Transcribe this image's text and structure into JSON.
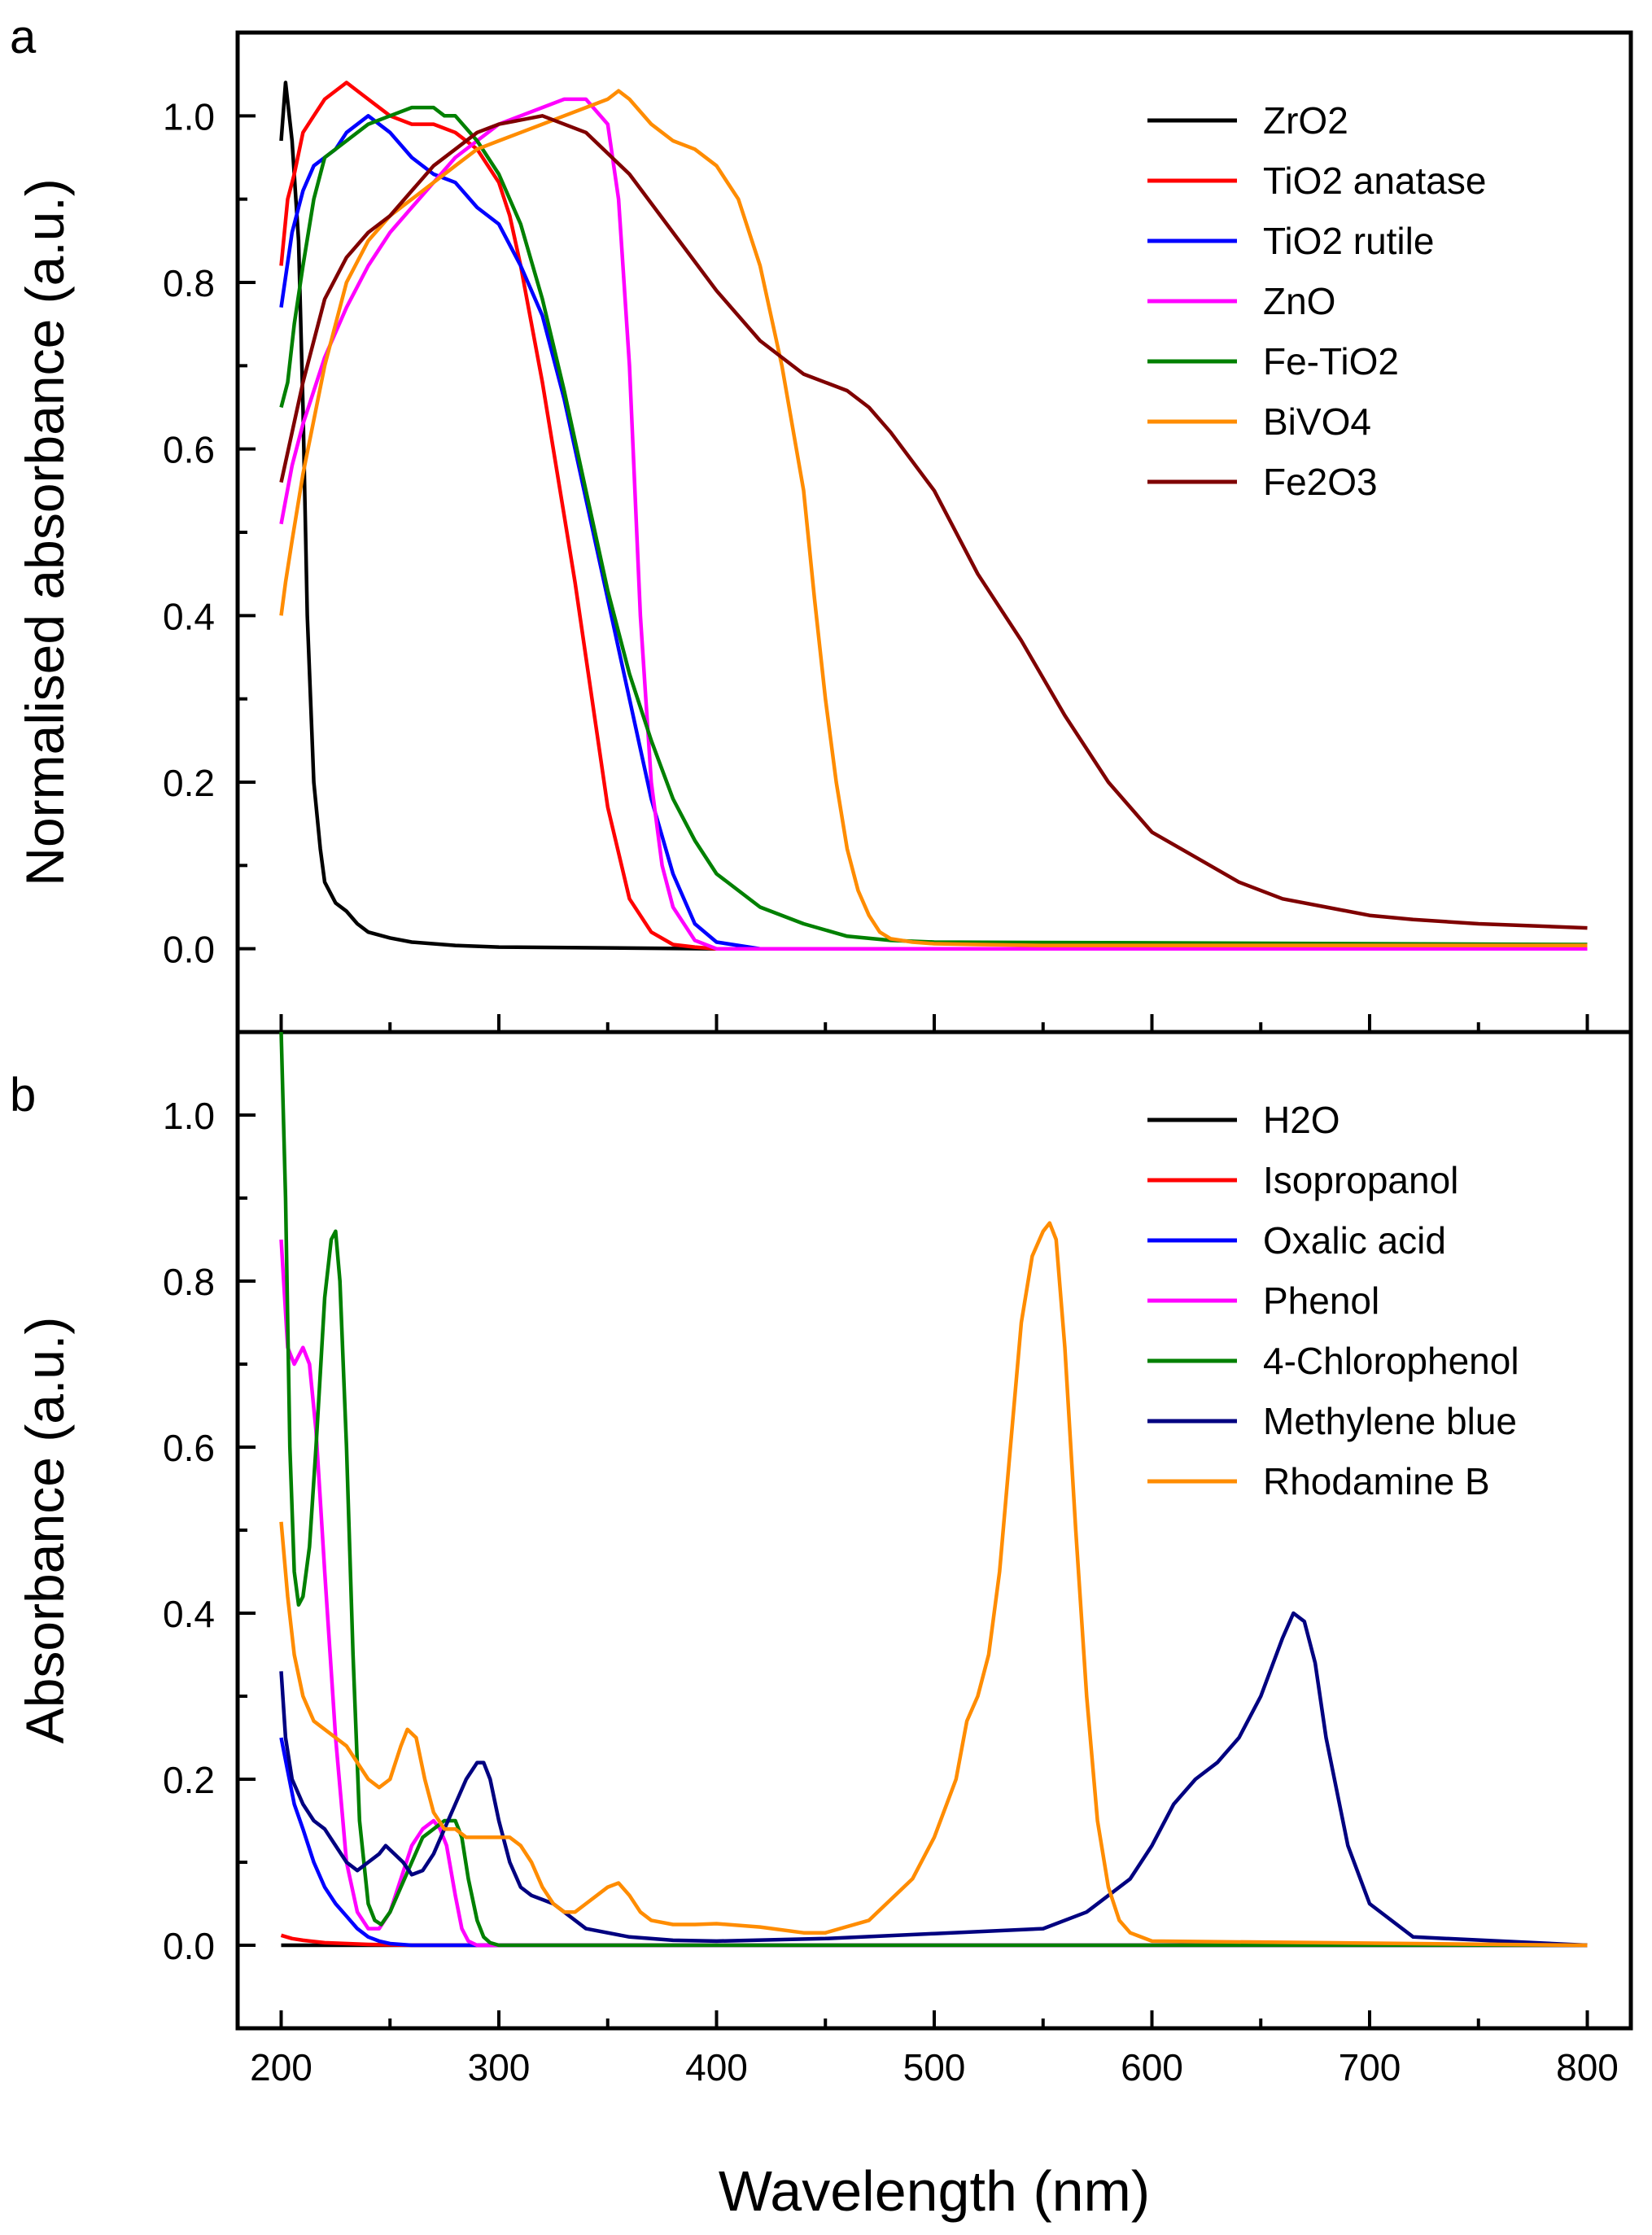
{
  "xlabel": "Wavelength (nm)",
  "chart_data": [
    {
      "type": "line",
      "panel": "a",
      "ylabel": "Normalised absorbance (a.u.)",
      "xlim": [
        180,
        820
      ],
      "ylim": [
        -0.1,
        1.1
      ],
      "xticks": [
        "200",
        "300",
        "400",
        "500",
        "600",
        "700",
        "800"
      ],
      "xtick_values": [
        200,
        300,
        400,
        500,
        600,
        700,
        800
      ],
      "yticks": [
        "0.0",
        "0.2",
        "0.4",
        "0.6",
        "0.8",
        "1.0"
      ],
      "ytick_values": [
        0.0,
        0.2,
        0.4,
        0.6,
        0.8,
        1.0
      ],
      "legend": "top-right",
      "series": [
        {
          "name": "ZrO2",
          "color": "#000000",
          "x": [
            200,
            202,
            205,
            208,
            210,
            212,
            215,
            218,
            220,
            225,
            230,
            235,
            240,
            250,
            260,
            280,
            300,
            350,
            400,
            500,
            800
          ],
          "y": [
            0.97,
            1.04,
            0.97,
            0.85,
            0.65,
            0.4,
            0.2,
            0.12,
            0.08,
            0.055,
            0.045,
            0.03,
            0.02,
            0.013,
            0.008,
            0.004,
            0.002,
            0.001,
            0.0,
            0.0,
            0.0
          ]
        },
        {
          "name": "TiO2 anatase",
          "color": "#ff0000",
          "x": [
            200,
            203,
            206,
            210,
            215,
            220,
            225,
            230,
            235,
            240,
            250,
            260,
            270,
            280,
            290,
            300,
            305,
            310,
            320,
            330,
            335,
            340,
            345,
            350,
            360,
            370,
            380,
            390,
            400,
            410,
            800
          ],
          "y": [
            0.82,
            0.9,
            0.93,
            0.98,
            1.0,
            1.02,
            1.03,
            1.04,
            1.03,
            1.02,
            1.0,
            0.99,
            0.99,
            0.98,
            0.96,
            0.92,
            0.88,
            0.82,
            0.68,
            0.52,
            0.44,
            0.35,
            0.26,
            0.17,
            0.06,
            0.02,
            0.005,
            0.002,
            0.0,
            0.0,
            0.0
          ]
        },
        {
          "name": "TiO2 rutile",
          "color": "#0000ff",
          "x": [
            200,
            205,
            210,
            215,
            220,
            225,
            230,
            240,
            250,
            260,
            270,
            280,
            290,
            300,
            310,
            320,
            330,
            340,
            350,
            360,
            370,
            380,
            390,
            400,
            420,
            800
          ],
          "y": [
            0.77,
            0.86,
            0.91,
            0.94,
            0.95,
            0.96,
            0.98,
            1.0,
            0.98,
            0.95,
            0.93,
            0.92,
            0.89,
            0.87,
            0.82,
            0.76,
            0.66,
            0.54,
            0.42,
            0.3,
            0.18,
            0.09,
            0.03,
            0.008,
            0.0,
            0.0
          ]
        },
        {
          "name": "ZnO",
          "color": "#ff00ff",
          "x": [
            200,
            205,
            210,
            220,
            230,
            240,
            250,
            260,
            270,
            280,
            290,
            300,
            310,
            320,
            330,
            340,
            350,
            355,
            360,
            365,
            370,
            375,
            380,
            390,
            400,
            800
          ],
          "y": [
            0.51,
            0.58,
            0.63,
            0.71,
            0.77,
            0.82,
            0.86,
            0.89,
            0.92,
            0.95,
            0.97,
            0.99,
            1.0,
            1.01,
            1.02,
            1.02,
            0.99,
            0.9,
            0.7,
            0.4,
            0.2,
            0.1,
            0.05,
            0.01,
            0.0,
            0.0
          ]
        },
        {
          "name": "Fe-TiO2",
          "color": "#008000",
          "x": [
            200,
            203,
            206,
            210,
            215,
            220,
            230,
            240,
            250,
            260,
            270,
            275,
            280,
            290,
            300,
            310,
            320,
            330,
            340,
            350,
            360,
            370,
            380,
            390,
            400,
            420,
            440,
            460,
            480,
            500,
            800
          ],
          "y": [
            0.65,
            0.68,
            0.75,
            0.82,
            0.9,
            0.95,
            0.97,
            0.99,
            1.0,
            1.01,
            1.01,
            1.0,
            1.0,
            0.97,
            0.93,
            0.87,
            0.78,
            0.67,
            0.55,
            0.43,
            0.33,
            0.25,
            0.18,
            0.13,
            0.09,
            0.05,
            0.03,
            0.015,
            0.01,
            0.008,
            0.005
          ]
        },
        {
          "name": "BiVO4",
          "color": "#ff8c00",
          "x": [
            200,
            202,
            205,
            210,
            220,
            230,
            240,
            250,
            260,
            270,
            280,
            290,
            300,
            310,
            320,
            330,
            340,
            350,
            355,
            360,
            370,
            380,
            390,
            400,
            410,
            420,
            430,
            440,
            445,
            450,
            455,
            460,
            465,
            470,
            475,
            480,
            490,
            500,
            520,
            550,
            800
          ],
          "y": [
            0.4,
            0.44,
            0.49,
            0.57,
            0.7,
            0.8,
            0.85,
            0.88,
            0.9,
            0.92,
            0.94,
            0.96,
            0.97,
            0.98,
            0.99,
            1.0,
            1.01,
            1.02,
            1.03,
            1.02,
            0.99,
            0.97,
            0.96,
            0.94,
            0.9,
            0.82,
            0.7,
            0.55,
            0.42,
            0.3,
            0.2,
            0.12,
            0.07,
            0.04,
            0.02,
            0.012,
            0.008,
            0.006,
            0.005,
            0.004,
            0.004
          ]
        },
        {
          "name": "Fe2O3",
          "color": "#7f0000",
          "x": [
            200,
            205,
            210,
            220,
            230,
            240,
            250,
            260,
            270,
            280,
            290,
            300,
            320,
            340,
            360,
            380,
            400,
            420,
            440,
            460,
            470,
            480,
            500,
            520,
            540,
            560,
            580,
            600,
            620,
            640,
            660,
            680,
            700,
            720,
            750,
            800
          ],
          "y": [
            0.56,
            0.62,
            0.68,
            0.78,
            0.83,
            0.86,
            0.88,
            0.91,
            0.94,
            0.96,
            0.98,
            0.99,
            1.0,
            0.98,
            0.93,
            0.86,
            0.79,
            0.73,
            0.69,
            0.67,
            0.65,
            0.62,
            0.55,
            0.45,
            0.37,
            0.28,
            0.2,
            0.14,
            0.11,
            0.08,
            0.06,
            0.05,
            0.04,
            0.035,
            0.03,
            0.025
          ]
        }
      ]
    },
    {
      "type": "line",
      "panel": "b",
      "ylabel": "Absorbance (a.u.)",
      "xlim": [
        180,
        820
      ],
      "ylim": [
        -0.1,
        1.1
      ],
      "xticks": [
        "200",
        "300",
        "400",
        "500",
        "600",
        "700",
        "800"
      ],
      "xtick_values": [
        200,
        300,
        400,
        500,
        600,
        700,
        800
      ],
      "yticks": [
        "0.0",
        "0.2",
        "0.4",
        "0.6",
        "0.8",
        "1.0"
      ],
      "ytick_values": [
        0.0,
        0.2,
        0.4,
        0.6,
        0.8,
        1.0
      ],
      "legend": "top-right",
      "series": [
        {
          "name": "H2O",
          "color": "#000000",
          "x": [
            200,
            250,
            300,
            400,
            500,
            600,
            700,
            800
          ],
          "y": [
            0.0,
            0.0,
            0.0,
            0.0,
            0.0,
            0.0,
            0.0,
            0.0
          ]
        },
        {
          "name": "Isopropanol",
          "color": "#ff0000",
          "x": [
            200,
            205,
            210,
            220,
            240,
            260,
            280,
            800
          ],
          "y": [
            0.012,
            0.008,
            0.006,
            0.003,
            0.001,
            0.0,
            0.0,
            0.0
          ]
        },
        {
          "name": "Oxalic acid",
          "color": "#0000ff",
          "x": [
            200,
            203,
            206,
            210,
            215,
            220,
            225,
            230,
            235,
            240,
            245,
            250,
            260,
            270,
            800
          ],
          "y": [
            0.25,
            0.21,
            0.17,
            0.14,
            0.1,
            0.07,
            0.05,
            0.035,
            0.02,
            0.01,
            0.005,
            0.002,
            0.0,
            0.0,
            0.0
          ]
        },
        {
          "name": "Phenol",
          "color": "#ff00ff",
          "x": [
            200,
            203,
            206,
            210,
            213,
            216,
            220,
            225,
            230,
            235,
            240,
            245,
            250,
            255,
            260,
            265,
            270,
            273,
            276,
            280,
            283,
            286,
            290,
            300,
            800
          ],
          "y": [
            0.85,
            0.72,
            0.7,
            0.72,
            0.7,
            0.62,
            0.45,
            0.25,
            0.1,
            0.04,
            0.02,
            0.02,
            0.04,
            0.08,
            0.12,
            0.14,
            0.15,
            0.14,
            0.12,
            0.06,
            0.02,
            0.005,
            0.0,
            0.0,
            0.0
          ]
        },
        {
          "name": "4-Chlorophenol",
          "color": "#008000",
          "x": [
            200,
            202,
            204,
            206,
            208,
            210,
            213,
            216,
            220,
            223,
            225,
            227,
            230,
            233,
            236,
            240,
            243,
            246,
            250,
            255,
            260,
            265,
            270,
            275,
            280,
            283,
            286,
            290,
            293,
            296,
            300,
            310,
            800
          ],
          "y": [
            1.1,
            0.9,
            0.6,
            0.45,
            0.41,
            0.42,
            0.48,
            0.6,
            0.78,
            0.85,
            0.86,
            0.8,
            0.6,
            0.35,
            0.15,
            0.05,
            0.03,
            0.025,
            0.04,
            0.07,
            0.1,
            0.13,
            0.14,
            0.15,
            0.15,
            0.13,
            0.08,
            0.03,
            0.01,
            0.003,
            0.0,
            0.0,
            0.0
          ]
        },
        {
          "name": "Methylene blue",
          "color": "#000080",
          "x": [
            200,
            202,
            205,
            210,
            215,
            220,
            225,
            230,
            235,
            240,
            245,
            248,
            252,
            256,
            260,
            265,
            270,
            275,
            280,
            285,
            290,
            293,
            296,
            300,
            305,
            310,
            315,
            320,
            325,
            330,
            340,
            360,
            380,
            400,
            450,
            500,
            550,
            570,
            590,
            600,
            610,
            620,
            630,
            640,
            650,
            660,
            665,
            670,
            675,
            680,
            690,
            700,
            720,
            800
          ],
          "y": [
            0.33,
            0.25,
            0.2,
            0.17,
            0.15,
            0.14,
            0.12,
            0.1,
            0.09,
            0.1,
            0.11,
            0.12,
            0.11,
            0.1,
            0.085,
            0.09,
            0.11,
            0.14,
            0.17,
            0.2,
            0.22,
            0.22,
            0.2,
            0.15,
            0.1,
            0.07,
            0.06,
            0.055,
            0.05,
            0.04,
            0.02,
            0.01,
            0.006,
            0.005,
            0.008,
            0.014,
            0.02,
            0.04,
            0.08,
            0.12,
            0.17,
            0.2,
            0.22,
            0.25,
            0.3,
            0.37,
            0.4,
            0.39,
            0.34,
            0.25,
            0.12,
            0.05,
            0.01,
            0.0
          ]
        },
        {
          "name": "Rhodamine B",
          "color": "#ff8c00",
          "x": [
            200,
            203,
            206,
            210,
            215,
            220,
            225,
            230,
            235,
            240,
            245,
            250,
            255,
            258,
            262,
            266,
            270,
            275,
            280,
            285,
            290,
            295,
            300,
            305,
            310,
            315,
            320,
            325,
            330,
            335,
            340,
            345,
            350,
            355,
            360,
            365,
            370,
            380,
            390,
            400,
            420,
            440,
            450,
            470,
            490,
            500,
            510,
            515,
            520,
            525,
            530,
            535,
            540,
            545,
            550,
            553,
            556,
            560,
            565,
            570,
            575,
            580,
            585,
            590,
            600,
            800
          ],
          "y": [
            0.51,
            0.42,
            0.35,
            0.3,
            0.27,
            0.26,
            0.25,
            0.24,
            0.22,
            0.2,
            0.19,
            0.2,
            0.24,
            0.26,
            0.25,
            0.2,
            0.16,
            0.14,
            0.14,
            0.13,
            0.13,
            0.13,
            0.13,
            0.13,
            0.12,
            0.1,
            0.07,
            0.05,
            0.04,
            0.04,
            0.05,
            0.06,
            0.07,
            0.075,
            0.06,
            0.04,
            0.03,
            0.025,
            0.025,
            0.026,
            0.022,
            0.015,
            0.015,
            0.03,
            0.08,
            0.13,
            0.2,
            0.27,
            0.3,
            0.35,
            0.45,
            0.6,
            0.75,
            0.83,
            0.86,
            0.87,
            0.85,
            0.72,
            0.5,
            0.3,
            0.15,
            0.07,
            0.03,
            0.015,
            0.005,
            0.0
          ]
        }
      ]
    }
  ]
}
